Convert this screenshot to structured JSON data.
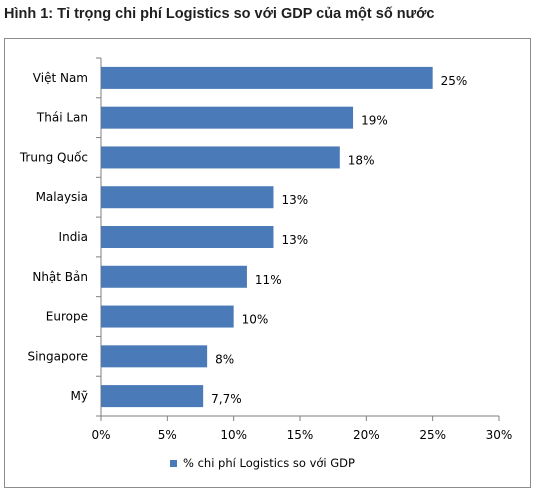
{
  "title": "Hình 1: Tỉ trọng chi phí Logistics so với GDP của một số nước",
  "chart_data": {
    "type": "bar",
    "orientation": "horizontal",
    "categories": [
      "Việt Nam",
      "Thái Lan",
      "Trung Quốc",
      "Malaysia",
      "India",
      "Nhật Bản",
      "Europe",
      "Singapore",
      "Mỹ"
    ],
    "series": [
      {
        "name": "% chi phí Logistics so với GDP",
        "values": [
          25,
          19,
          18,
          13,
          13,
          11,
          10,
          8,
          7.7
        ],
        "labels": [
          "25%",
          "19%",
          "18%",
          "13%",
          "13%",
          "11%",
          "10%",
          "8%",
          "7,7%"
        ],
        "color": "#4a7ab8"
      }
    ],
    "xlim": [
      0,
      30
    ],
    "xticks": [
      0,
      5,
      10,
      15,
      20,
      25,
      30
    ],
    "xtick_labels": [
      "0%",
      "5%",
      "10%",
      "15%",
      "20%",
      "25%",
      "30%"
    ],
    "grid": false,
    "legend_position": "bottom"
  }
}
